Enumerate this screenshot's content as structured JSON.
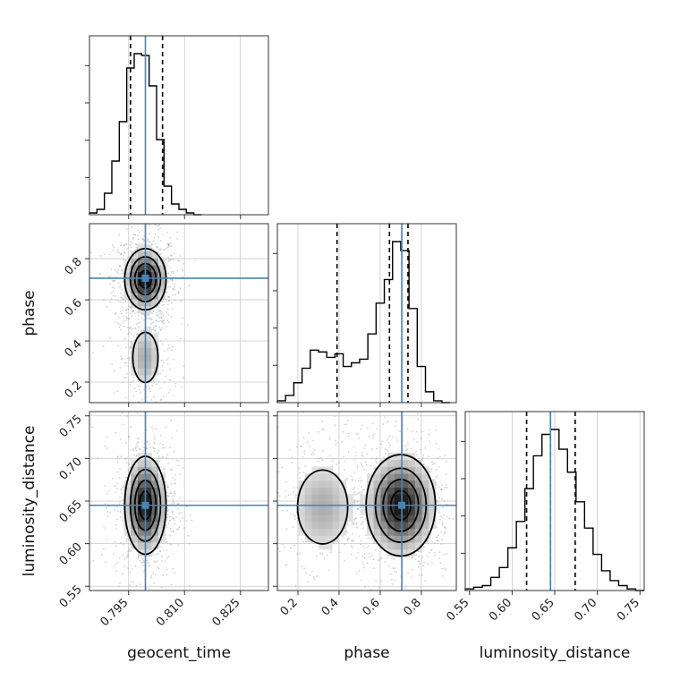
{
  "chart_data": {
    "type": "corner",
    "colors": {
      "truth": "#4682b4",
      "hist": "#000000",
      "grid": "#c8c8c8",
      "scatter": "#9a9a9a"
    },
    "parameters": [
      {
        "name": "geocent_time",
        "label": "geocent_time",
        "truth": 0.7995,
        "range": [
          0.7845,
          0.8325
        ],
        "ticks": [
          "0.795",
          "0.810",
          "0.825"
        ],
        "tick_values": [
          0.795,
          0.81,
          0.825
        ],
        "quantiles": [
          0.7955,
          0.8041
        ]
      },
      {
        "name": "phase",
        "label": "phase",
        "truth": 0.705,
        "range": [
          0.1,
          0.97
        ],
        "ticks": [
          "0.2",
          "0.4",
          "0.6",
          "0.8"
        ],
        "tick_values": [
          0.2,
          0.4,
          0.6,
          0.8
        ],
        "quantiles": [
          0.39,
          0.645,
          0.735
        ]
      },
      {
        "name": "luminosity_distance",
        "label": "luminosity_distance",
        "truth": 0.645,
        "range": [
          0.545,
          0.755
        ],
        "ticks": [
          "0.55",
          "0.60",
          "0.65",
          "0.70",
          "0.75"
        ],
        "tick_values": [
          0.55,
          0.6,
          0.65,
          0.7,
          0.75
        ],
        "quantiles": [
          0.617,
          0.645,
          0.674
        ]
      }
    ],
    "histograms": {
      "geocent_time": {
        "bin_edges": [
          0.7845,
          0.7865,
          0.7885,
          0.7905,
          0.7925,
          0.7945,
          0.7965,
          0.7985,
          0.8005,
          0.8025,
          0.8045,
          0.8065,
          0.8085,
          0.8105,
          0.8125,
          0.8145
        ],
        "counts": [
          1,
          3,
          12,
          30,
          52,
          82,
          90,
          89,
          72,
          42,
          16,
          6,
          3,
          1,
          0
        ]
      },
      "phase": {
        "bin_edges": [
          0.1,
          0.14,
          0.18,
          0.22,
          0.26,
          0.3,
          0.34,
          0.38,
          0.42,
          0.46,
          0.5,
          0.54,
          0.58,
          0.62,
          0.66,
          0.7,
          0.74,
          0.78,
          0.82,
          0.86,
          0.9,
          0.94
        ],
        "counts": [
          1,
          4,
          11,
          19,
          29,
          28,
          25,
          27,
          20,
          22,
          24,
          38,
          55,
          68,
          89,
          84,
          52,
          20,
          6,
          1,
          0
        ]
      },
      "luminosity_distance": {
        "bin_edges": [
          0.545,
          0.555,
          0.565,
          0.575,
          0.585,
          0.595,
          0.605,
          0.615,
          0.625,
          0.635,
          0.645,
          0.655,
          0.665,
          0.675,
          0.685,
          0.695,
          0.705,
          0.715,
          0.725,
          0.735,
          0.745,
          0.755
        ],
        "counts": [
          1,
          2,
          3,
          8,
          14,
          26,
          42,
          62,
          82,
          95,
          98,
          86,
          72,
          54,
          38,
          22,
          12,
          6,
          3,
          1,
          0
        ]
      }
    },
    "contours_2d": {
      "phase_vs_geocent_time": {
        "modes": [
          {
            "x": 0.7995,
            "y": 0.7,
            "sx": 0.0028,
            "sy": 0.075,
            "weight": 1.0
          },
          {
            "x": 0.7995,
            "y": 0.32,
            "sx": 0.0025,
            "sy": 0.09,
            "weight": 0.35
          }
        ]
      },
      "luminosity_distance_vs_geocent_time": {
        "modes": [
          {
            "x": 0.7995,
            "y": 0.645,
            "sx": 0.0028,
            "sy": 0.029,
            "weight": 1.0
          }
        ]
      },
      "luminosity_distance_vs_phase": {
        "modes": [
          {
            "x": 0.7,
            "y": 0.645,
            "sx": 0.085,
            "sy": 0.03,
            "weight": 1.0
          },
          {
            "x": 0.32,
            "y": 0.643,
            "sx": 0.09,
            "sy": 0.032,
            "weight": 0.35
          }
        ]
      }
    },
    "grid": true
  }
}
